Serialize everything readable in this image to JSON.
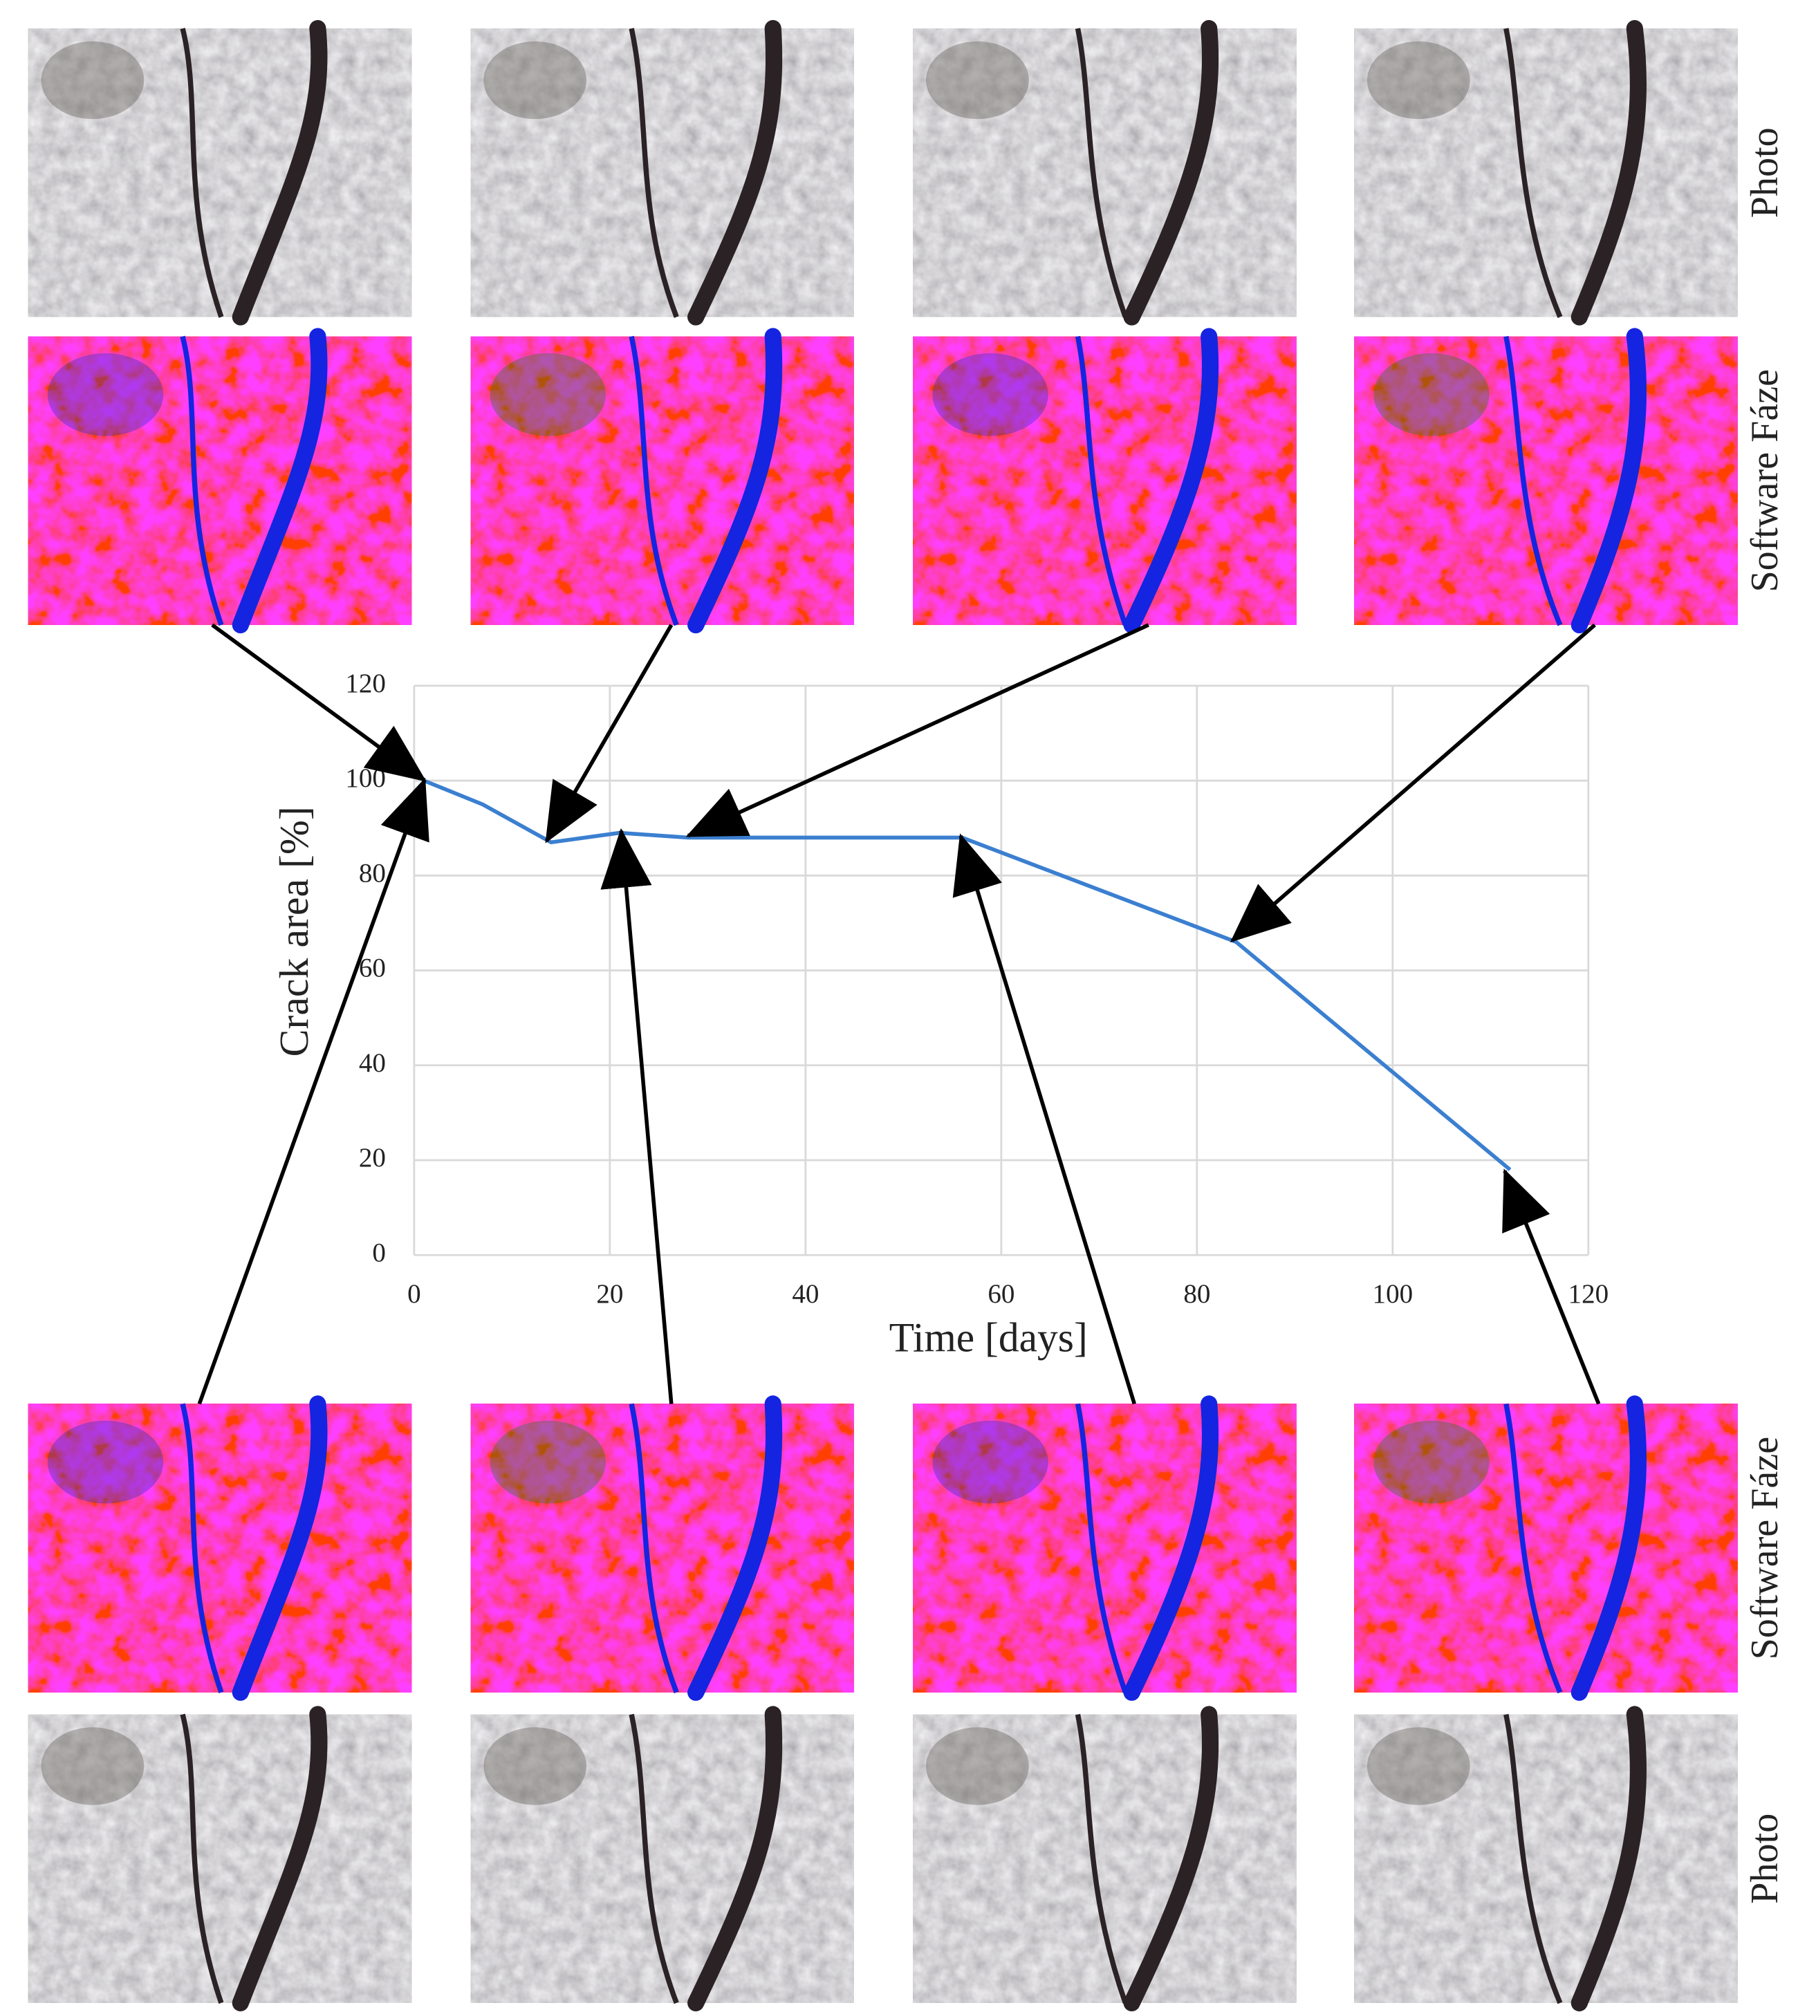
{
  "chart_data": {
    "type": "line",
    "xlabel": "Time [days]",
    "ylabel": "Crack area [%]",
    "x": [
      1,
      7,
      14,
      21,
      28,
      56,
      84,
      112
    ],
    "values": [
      100,
      95,
      87,
      89,
      88,
      88,
      66,
      18
    ],
    "color": "#3b7fd0",
    "xlim": [
      0,
      120
    ],
    "xticks": [
      0,
      20,
      40,
      60,
      80,
      100,
      120
    ],
    "ylim": [
      0,
      120
    ],
    "yticks": [
      0,
      20,
      40,
      60,
      80,
      100,
      120
    ],
    "grid": true
  },
  "figure": {
    "row_labels": [
      "Photo",
      "Software Fáze",
      "Software Fáze",
      "Photo"
    ]
  }
}
